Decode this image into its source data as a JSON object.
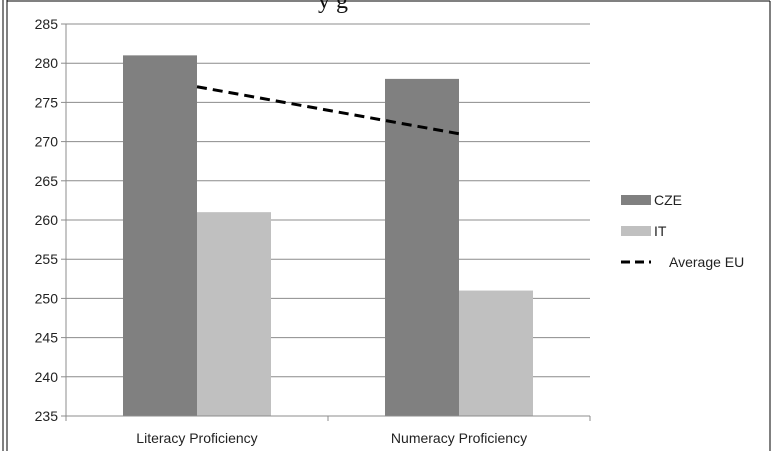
{
  "page": {
    "title_fragment": "y       g"
  },
  "chart_data": {
    "type": "bar",
    "title": "",
    "xlabel": "",
    "ylabel": "",
    "categories": [
      "Literacy Proficiency",
      "Numeracy Proficiency"
    ],
    "series": [
      {
        "name": "CZE",
        "type": "bar",
        "color": "#808080",
        "values": [
          281,
          278
        ]
      },
      {
        "name": "IT",
        "type": "bar",
        "color": "#c0c0c0",
        "values": [
          261,
          251
        ]
      },
      {
        "name": "Average EU",
        "type": "line",
        "style": "dashed",
        "color": "#000000",
        "values": [
          277,
          271
        ]
      }
    ],
    "ylim": [
      235,
      285
    ],
    "yticks": [
      235,
      240,
      245,
      250,
      255,
      260,
      265,
      270,
      275,
      280,
      285
    ],
    "grid": true,
    "legend_position": "right"
  }
}
